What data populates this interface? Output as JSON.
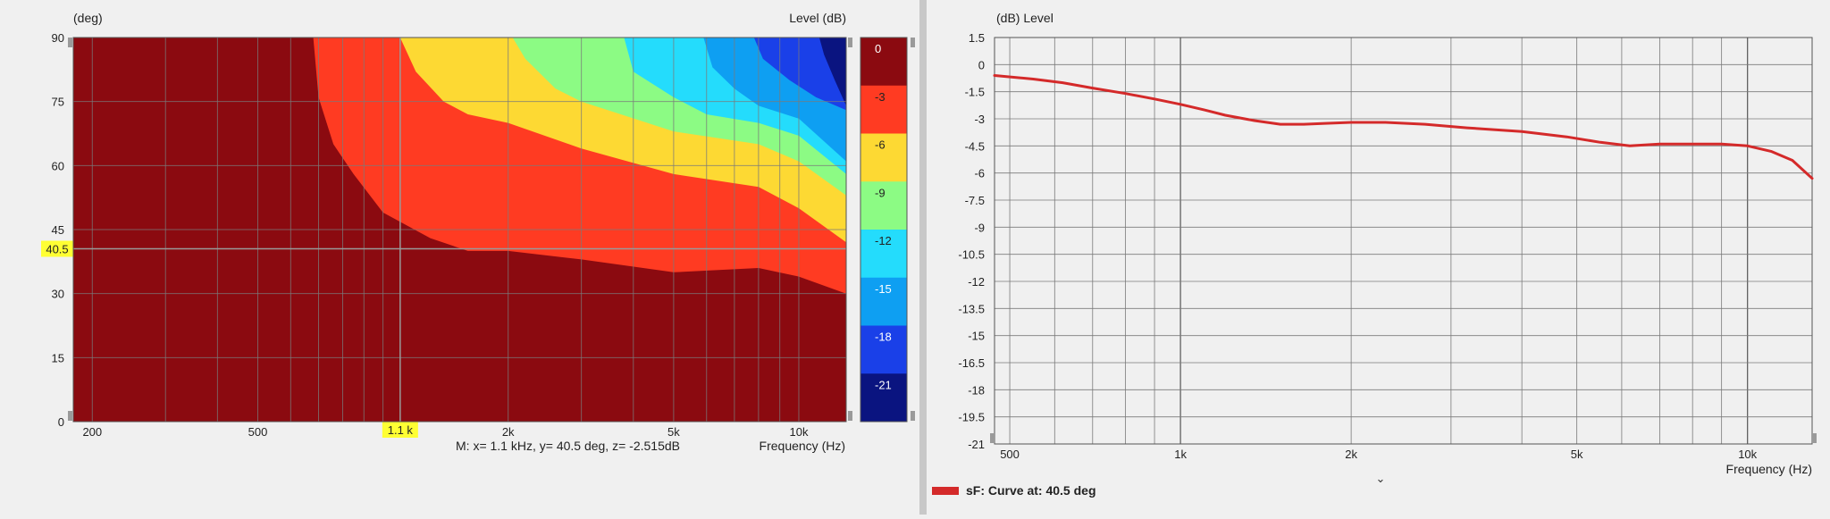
{
  "chart_data": [
    {
      "type": "heatmap",
      "title": "",
      "ylabel": "(deg)",
      "xlabel": "Frequency  (Hz)",
      "colorbar_label": "Level  (dB)",
      "x_scale": "log",
      "xlim": [
        180,
        13000
      ],
      "ylim": [
        0,
        90
      ],
      "y_ticks": [
        0,
        15,
        30,
        45,
        60,
        75,
        90
      ],
      "x_tick_labels": [
        {
          "value": 200,
          "label": "200"
        },
        {
          "value": 500,
          "label": "500"
        },
        {
          "value": 2000,
          "label": "2k"
        },
        {
          "value": 5000,
          "label": "5k"
        },
        {
          "value": 10000,
          "label": "10k"
        }
      ],
      "cursor": {
        "x_label": "1.1 k",
        "y_label": "40.5",
        "x": 1100,
        "y": 40.5
      },
      "readout": "M:  x= 1.1 kHz,  y= 40.5 deg, z= -2.515dB",
      "levels": [
        {
          "label": "0",
          "color": "#8b0a10"
        },
        {
          "label": "-3",
          "color": "#ff3b22"
        },
        {
          "label": "-6",
          "color": "#fdd933"
        },
        {
          "label": "-9",
          "color": "#8cfb84"
        },
        {
          "label": "-12",
          "color": "#24dcfc"
        },
        {
          "label": "-15",
          "color": "#0e9ff2"
        },
        {
          "label": "-18",
          "color": "#1a40e8"
        },
        {
          "label": "-21",
          "color": "#0a1480"
        }
      ],
      "extra_band_color": "#000000",
      "contours": [
        {
          "level": -3,
          "points": [
            [
              680,
              90
            ],
            [
              700,
              76
            ],
            [
              760,
              65
            ],
            [
              850,
              58
            ],
            [
              1000,
              49
            ],
            [
              1300,
              43
            ],
            [
              1600,
              40
            ],
            [
              2000,
              40
            ],
            [
              3000,
              38
            ],
            [
              5000,
              35
            ],
            [
              8000,
              36
            ],
            [
              10000,
              34
            ],
            [
              13000,
              30
            ]
          ]
        },
        {
          "level": -6,
          "points": [
            [
              1100,
              90
            ],
            [
              1200,
              82
            ],
            [
              1400,
              75
            ],
            [
              1600,
              72
            ],
            [
              2000,
              70
            ],
            [
              3000,
              64
            ],
            [
              5000,
              58
            ],
            [
              8000,
              55
            ],
            [
              10000,
              50
            ],
            [
              13000,
              42
            ]
          ]
        },
        {
          "level": -9,
          "points": [
            [
              2050,
              90
            ],
            [
              2200,
              85
            ],
            [
              2600,
              78
            ],
            [
              3000,
              75
            ],
            [
              5000,
              68
            ],
            [
              8000,
              65
            ],
            [
              10000,
              61
            ],
            [
              13000,
              53
            ]
          ]
        },
        {
          "level": -12,
          "points": [
            [
              3800,
              90
            ],
            [
              4000,
              82
            ],
            [
              5000,
              76
            ],
            [
              6000,
              72
            ],
            [
              8000,
              70
            ],
            [
              10000,
              67
            ],
            [
              13000,
              58
            ]
          ]
        },
        {
          "level": -15,
          "points": [
            [
              5900,
              90
            ],
            [
              6200,
              83
            ],
            [
              7000,
              78
            ],
            [
              8000,
              74
            ],
            [
              10000,
              71
            ],
            [
              13000,
              61
            ]
          ]
        },
        {
          "level": -18,
          "points": [
            [
              7800,
              90
            ],
            [
              8200,
              85
            ],
            [
              9500,
              80
            ],
            [
              11000,
              76
            ],
            [
              13000,
              73
            ]
          ]
        },
        {
          "level": -21,
          "points": [
            [
              11200,
              90
            ],
            [
              11500,
              86
            ],
            [
              12200,
              80
            ],
            [
              13000,
              74
            ]
          ]
        }
      ]
    },
    {
      "type": "line",
      "title": "",
      "ylabel": "(dB)  Level",
      "xlabel": "Frequency  (Hz)",
      "x_scale": "log",
      "xlim": [
        470,
        13000
      ],
      "ylim": [
        -21,
        1.5
      ],
      "y_ticks": [
        "1.5",
        "0",
        "-1.5",
        "-3",
        "-4.5",
        "-6",
        "-7.5",
        "-9",
        "-10.5",
        "-12",
        "-13.5",
        "-15",
        "-16.5",
        "-18",
        "-19.5",
        "-21"
      ],
      "x_tick_labels": [
        {
          "value": 500,
          "label": "500"
        },
        {
          "value": 1000,
          "label": "1k"
        },
        {
          "value": 2000,
          "label": "2k"
        },
        {
          "value": 5000,
          "label": "5k"
        },
        {
          "value": 10000,
          "label": "10k"
        }
      ],
      "series": [
        {
          "name": "sF: Curve at: 40.5 deg",
          "color": "#d42a2a",
          "x": [
            470,
            550,
            620,
            700,
            800,
            900,
            1000,
            1100,
            1200,
            1350,
            1500,
            1650,
            1800,
            2000,
            2300,
            2700,
            3200,
            4000,
            4800,
            5500,
            6200,
            7000,
            8000,
            9000,
            10000,
            11000,
            12000,
            13000
          ],
          "y": [
            -0.6,
            -0.8,
            -1.0,
            -1.3,
            -1.6,
            -1.9,
            -2.2,
            -2.5,
            -2.8,
            -3.1,
            -3.3,
            -3.3,
            -3.25,
            -3.2,
            -3.2,
            -3.3,
            -3.5,
            -3.7,
            -4.0,
            -4.3,
            -4.5,
            -4.4,
            -4.4,
            -4.4,
            -4.5,
            -4.8,
            -5.3,
            -6.3
          ]
        }
      ],
      "legend": {
        "text": "sF: Curve at: 40.5 deg",
        "placement": "bottom-left"
      }
    }
  ]
}
